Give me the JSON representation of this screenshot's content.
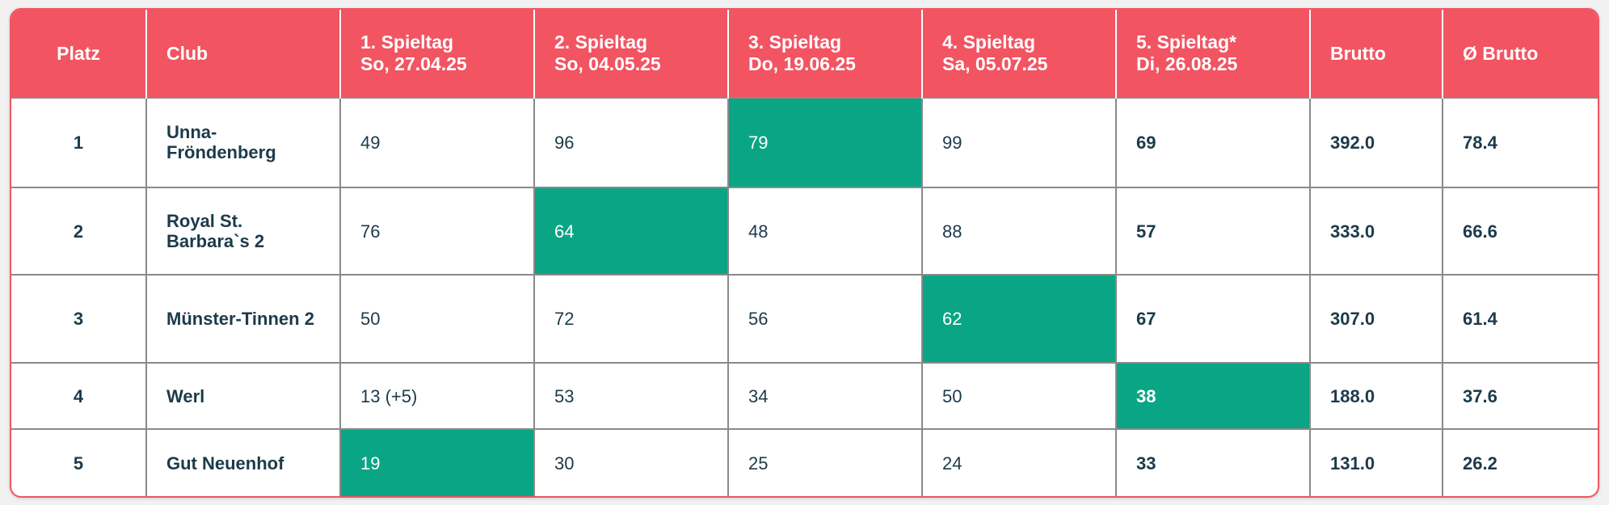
{
  "table": {
    "header": [
      [
        "Platz"
      ],
      [
        "Club"
      ],
      [
        "1. Spieltag",
        "So, 27.04.25"
      ],
      [
        "2. Spieltag",
        "So, 04.05.25"
      ],
      [
        "3. Spieltag",
        "Do, 19.06.25"
      ],
      [
        "4. Spieltag",
        "Sa, 05.07.25"
      ],
      [
        "5. Spieltag*",
        "Di, 26.08.25"
      ],
      [
        "Brutto"
      ],
      [
        "Ø Brutto"
      ]
    ],
    "bold_columns": [
      0,
      1,
      6,
      7,
      8
    ],
    "rows": [
      {
        "cells": [
          "1",
          "Unna-Fröndenberg",
          "49",
          "96",
          "79",
          "99",
          "69",
          "392.0",
          "78.4"
        ],
        "highlight": 4
      },
      {
        "cells": [
          "2",
          "Royal St. Barbara`s 2",
          "76",
          "64",
          "48",
          "88",
          "57",
          "333.0",
          "66.6"
        ],
        "highlight": 3
      },
      {
        "cells": [
          "3",
          "Münster-Tinnen 2",
          "50",
          "72",
          "56",
          "62",
          "67",
          "307.0",
          "61.4"
        ],
        "highlight": 5
      },
      {
        "cells": [
          "4",
          "Werl",
          "13 (+5)",
          "53",
          "34",
          "50",
          "38",
          "188.0",
          "37.6"
        ],
        "highlight": 6
      },
      {
        "cells": [
          "5",
          "Gut Neuenhof",
          "19",
          "30",
          "25",
          "24",
          "33",
          "131.0",
          "26.2"
        ],
        "highlight": 2
      }
    ]
  }
}
